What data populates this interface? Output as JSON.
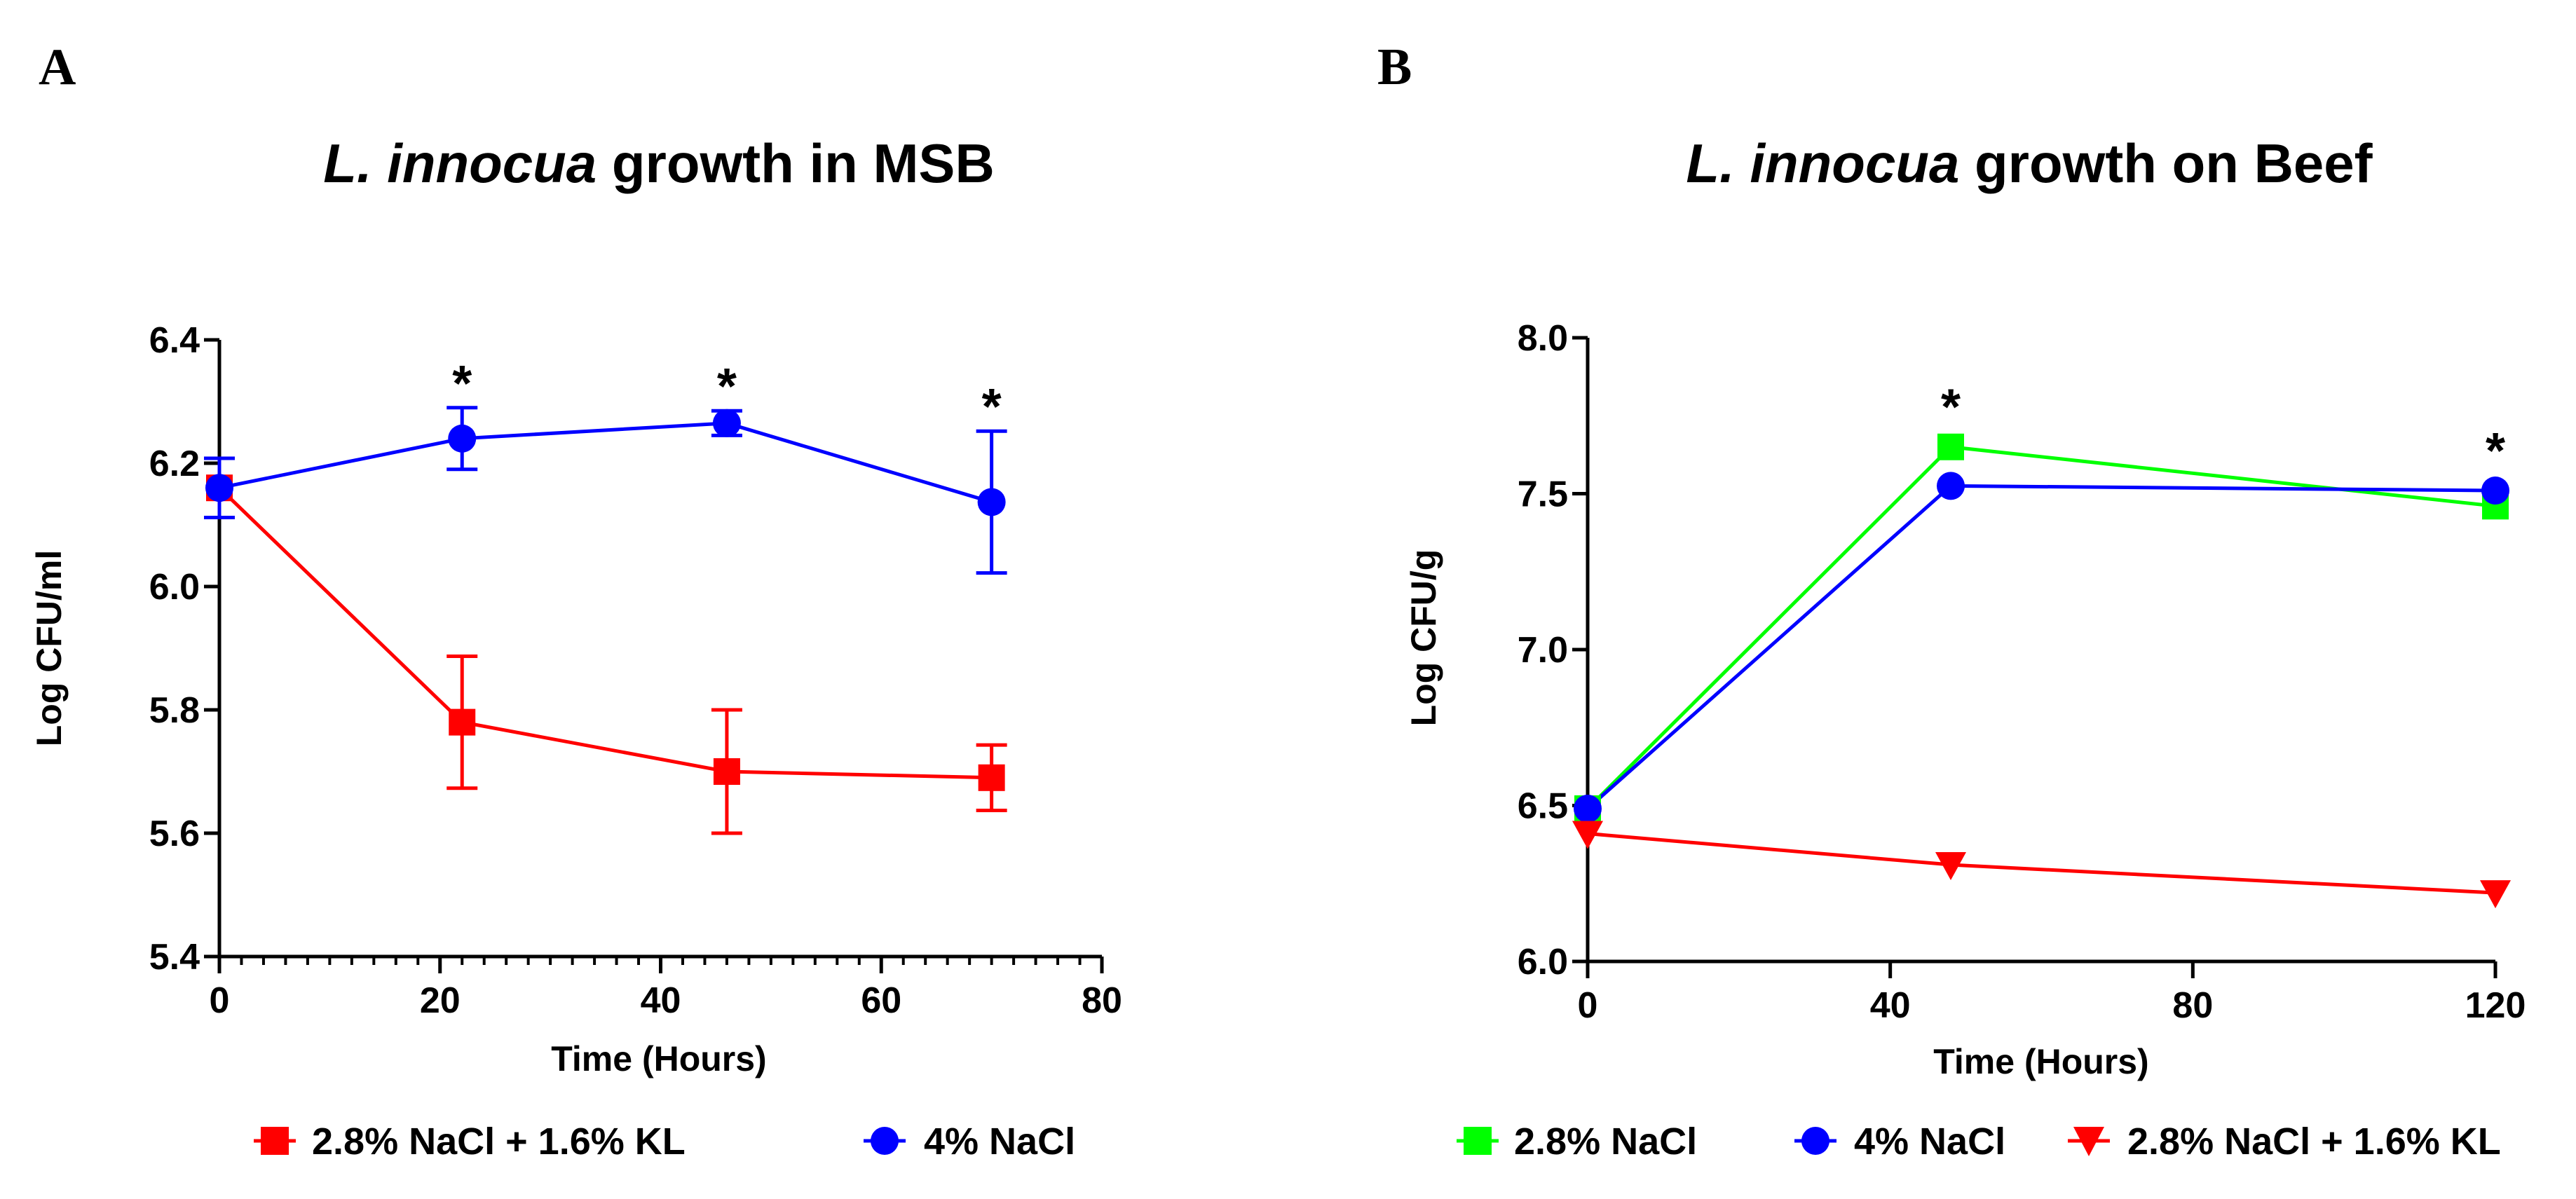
{
  "chart_data": [
    {
      "panel_letter": "A",
      "type": "line",
      "title_italic": "L. innocua",
      "title_rest": " growth in MSB",
      "xlabel": "Time (Hours)",
      "ylabel": "Log CFU/ml",
      "xlim": [
        0,
        80
      ],
      "ylim": [
        5.4,
        6.4
      ],
      "xticks": [
        0,
        20,
        40,
        60,
        80
      ],
      "xtick_labels": [
        "0",
        "20",
        "40",
        "60",
        "80"
      ],
      "x_minor_step": 2,
      "yticks": [
        5.4,
        5.6,
        5.8,
        6.0,
        6.2,
        6.4
      ],
      "ytick_labels": [
        "5.4",
        "5.6",
        "5.8",
        "6.0",
        "6.2",
        "6.4"
      ],
      "series": [
        {
          "name": "2.8% NaCl + 1.6% KL",
          "color": "#ff0000",
          "marker": "square",
          "x": [
            0,
            22,
            46,
            70
          ],
          "y": [
            6.16,
            5.78,
            5.7,
            5.69
          ],
          "err": [
            0.0,
            0.107,
            0.1,
            0.053
          ]
        },
        {
          "name": "4% NaCl",
          "color": "#0000ff",
          "marker": "circle",
          "x": [
            0,
            22,
            46,
            70
          ],
          "y": [
            6.16,
            6.24,
            6.265,
            6.137
          ],
          "err": [
            0.048,
            0.05,
            0.02,
            0.115
          ]
        }
      ],
      "annotations": [
        {
          "text": "*",
          "x": 22,
          "y": 6.29
        },
        {
          "text": "*",
          "x": 46,
          "y": 6.285
        },
        {
          "text": "*",
          "x": 70,
          "y": 6.252
        }
      ]
    },
    {
      "panel_letter": "B",
      "type": "line",
      "title_italic": "L. innocua",
      "title_rest": " growth on Beef",
      "xlabel": "Time (Hours)",
      "ylabel": "Log CFU/g",
      "xlim": [
        0,
        120
      ],
      "ylim": [
        6.0,
        8.0
      ],
      "xticks": [
        0,
        40,
        80,
        120
      ],
      "xtick_labels": [
        "0",
        "40",
        "80",
        "120"
      ],
      "x_minor_step": 0,
      "yticks": [
        6.0,
        6.5,
        7.0,
        7.5,
        8.0
      ],
      "ytick_labels": [
        "6.0",
        "6.5",
        "7.0",
        "7.5",
        "8.0"
      ],
      "series": [
        {
          "name": "2.8% NaCl",
          "color": "#00ff00",
          "marker": "square",
          "x": [
            0,
            48,
            120
          ],
          "y": [
            6.49,
            7.65,
            7.46
          ],
          "err": [
            0,
            0,
            0
          ]
        },
        {
          "name": "4% NaCl",
          "color": "#0000ff",
          "marker": "circle",
          "x": [
            0,
            48,
            120
          ],
          "y": [
            6.49,
            7.525,
            7.51
          ],
          "err": [
            0,
            0,
            0
          ]
        },
        {
          "name": "2.8% NaCl + 1.6% KL",
          "color": "#ff0000",
          "marker": "triangle-down",
          "x": [
            0,
            48,
            120
          ],
          "y": [
            6.41,
            6.31,
            6.22
          ],
          "err": [
            0,
            0,
            0
          ]
        }
      ],
      "annotations": [
        {
          "text": "*",
          "x": 48,
          "y": 7.7
        },
        {
          "text": "*",
          "x": 120,
          "y": 7.56
        }
      ]
    }
  ]
}
